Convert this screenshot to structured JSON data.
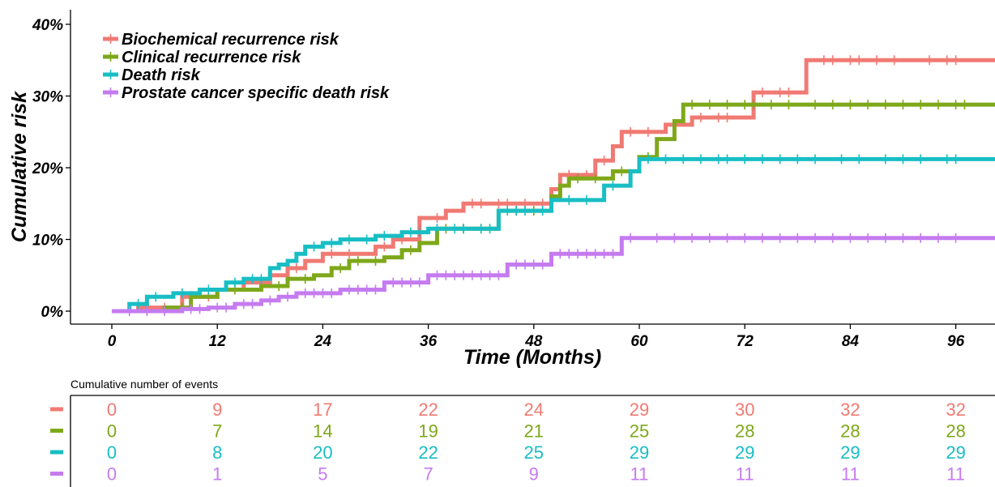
{
  "chart_data": {
    "type": "line",
    "subtype": "kaplan-meier-step",
    "title": "",
    "xlabel": "Time (Months)",
    "ylabel": "Cumulative risk",
    "xlim": [
      -10,
      100
    ],
    "ylim": [
      0,
      0.4
    ],
    "x_ticks": [
      0,
      12,
      24,
      36,
      48,
      60,
      72,
      84,
      96
    ],
    "x_tick_labels": [
      "0",
      "12",
      "24",
      "36",
      "48",
      "60",
      "72",
      "84",
      "96"
    ],
    "y_ticks": [
      0,
      0.1,
      0.2,
      0.3,
      0.4
    ],
    "y_tick_labels": [
      "0%",
      "10%",
      "20%",
      "30%",
      "40%"
    ],
    "grid": false,
    "legend_position": "top-left",
    "series": [
      {
        "name": "Biochemical recurrence risk",
        "color": "#F07A73",
        "steps": [
          [
            0,
            0
          ],
          [
            3,
            0.005
          ],
          [
            8,
            0.02
          ],
          [
            12,
            0.03
          ],
          [
            15,
            0.04
          ],
          [
            18,
            0.05
          ],
          [
            20,
            0.06
          ],
          [
            22,
            0.07
          ],
          [
            24,
            0.08
          ],
          [
            28,
            0.08
          ],
          [
            30,
            0.09
          ],
          [
            32,
            0.1
          ],
          [
            34,
            0.1
          ],
          [
            35,
            0.13
          ],
          [
            38,
            0.14
          ],
          [
            40,
            0.15
          ],
          [
            46,
            0.15
          ],
          [
            50,
            0.17
          ],
          [
            51,
            0.19
          ],
          [
            55,
            0.21
          ],
          [
            57,
            0.23
          ],
          [
            58,
            0.25
          ],
          [
            63,
            0.26
          ],
          [
            66,
            0.27
          ],
          [
            73,
            0.305
          ],
          [
            79,
            0.35
          ],
          [
            100,
            0.35
          ]
        ],
        "censor_times": [
          6,
          11,
          17,
          21,
          25,
          27,
          31,
          33,
          37,
          41,
          42,
          44,
          45,
          47,
          49,
          52,
          54,
          56,
          59,
          61,
          64,
          67,
          69,
          70,
          74,
          76,
          77,
          81,
          82,
          84,
          85,
          87,
          89,
          93,
          95,
          96
        ]
      },
      {
        "name": "Clinical recurrence risk",
        "color": "#7EA81A",
        "steps": [
          [
            0,
            0
          ],
          [
            6,
            0.005
          ],
          [
            9,
            0.02
          ],
          [
            12,
            0.03
          ],
          [
            17,
            0.035
          ],
          [
            20,
            0.045
          ],
          [
            23,
            0.05
          ],
          [
            25,
            0.06
          ],
          [
            27,
            0.07
          ],
          [
            31,
            0.075
          ],
          [
            33,
            0.085
          ],
          [
            35,
            0.095
          ],
          [
            37,
            0.115
          ],
          [
            44,
            0.14
          ],
          [
            50,
            0.16
          ],
          [
            51,
            0.175
          ],
          [
            52,
            0.185
          ],
          [
            57,
            0.195
          ],
          [
            60,
            0.215
          ],
          [
            62,
            0.24
          ],
          [
            64,
            0.265
          ],
          [
            65,
            0.288
          ],
          [
            100,
            0.288
          ]
        ],
        "censor_times": [
          8,
          14,
          19,
          22,
          26,
          28,
          30,
          34,
          38,
          40,
          42,
          46,
          48,
          53,
          55,
          58,
          61,
          66,
          68,
          70,
          72,
          73,
          75,
          77,
          80,
          82,
          84,
          86,
          88,
          90,
          92,
          94,
          96,
          97
        ]
      },
      {
        "name": "Death risk",
        "color": "#18BEC4",
        "steps": [
          [
            0,
            0
          ],
          [
            2,
            0.01
          ],
          [
            4,
            0.02
          ],
          [
            7,
            0.025
          ],
          [
            10,
            0.03
          ],
          [
            13,
            0.04
          ],
          [
            15,
            0.045
          ],
          [
            18,
            0.06
          ],
          [
            19,
            0.065
          ],
          [
            20,
            0.07
          ],
          [
            21,
            0.08
          ],
          [
            22,
            0.09
          ],
          [
            24,
            0.095
          ],
          [
            26,
            0.1
          ],
          [
            30,
            0.105
          ],
          [
            33,
            0.11
          ],
          [
            36,
            0.115
          ],
          [
            44,
            0.14
          ],
          [
            50,
            0.155
          ],
          [
            56,
            0.175
          ],
          [
            59,
            0.195
          ],
          [
            60,
            0.212
          ],
          [
            100,
            0.212
          ]
        ],
        "censor_times": [
          3,
          5,
          8,
          11,
          14,
          16,
          17,
          23,
          25,
          27,
          29,
          31,
          34,
          35,
          37,
          39,
          40,
          42,
          43,
          45,
          46,
          47,
          49,
          52,
          54,
          57,
          61,
          63,
          65,
          67,
          69,
          70,
          72,
          74,
          76,
          78,
          80,
          83,
          85,
          88,
          90,
          92,
          95,
          96
        ]
      },
      {
        "name": "Prostate cancer specific death risk",
        "color": "#C57BF0",
        "steps": [
          [
            0,
            0
          ],
          [
            8,
            0.003
          ],
          [
            11,
            0.005
          ],
          [
            14,
            0.01
          ],
          [
            17,
            0.015
          ],
          [
            19,
            0.02
          ],
          [
            21,
            0.025
          ],
          [
            26,
            0.03
          ],
          [
            31,
            0.04
          ],
          [
            36,
            0.05
          ],
          [
            45,
            0.065
          ],
          [
            50,
            0.08
          ],
          [
            58,
            0.102
          ],
          [
            100,
            0.102
          ]
        ],
        "censor_times": [
          2,
          4,
          6,
          9,
          10,
          12,
          13,
          15,
          16,
          18,
          20,
          22,
          23,
          24,
          25,
          27,
          28,
          29,
          30,
          32,
          33,
          34,
          35,
          37,
          38,
          39,
          40,
          41,
          42,
          43,
          44,
          46,
          47,
          48,
          49,
          51,
          52,
          53,
          54,
          55,
          56,
          57,
          59,
          62,
          64,
          66,
          68,
          70,
          72,
          74,
          76,
          78,
          80,
          82,
          84,
          86,
          88,
          90,
          92,
          94,
          96
        ]
      }
    ]
  },
  "risk_table": {
    "title": "Cumulative number of events",
    "times": [
      0,
      12,
      24,
      36,
      48,
      60,
      72,
      84,
      96
    ],
    "rows": [
      {
        "color": "#F07A73",
        "values": [
          "0",
          "9",
          "17",
          "22",
          "24",
          "29",
          "30",
          "32",
          "32"
        ]
      },
      {
        "color": "#7EA81A",
        "values": [
          "0",
          "7",
          "14",
          "19",
          "21",
          "25",
          "28",
          "28",
          "28"
        ]
      },
      {
        "color": "#18BEC4",
        "values": [
          "0",
          "8",
          "20",
          "22",
          "25",
          "29",
          "29",
          "29",
          "29"
        ]
      },
      {
        "color": "#C57BF0",
        "values": [
          "0",
          "1",
          "5",
          "7",
          "9",
          "11",
          "11",
          "11",
          "11"
        ]
      }
    ]
  }
}
